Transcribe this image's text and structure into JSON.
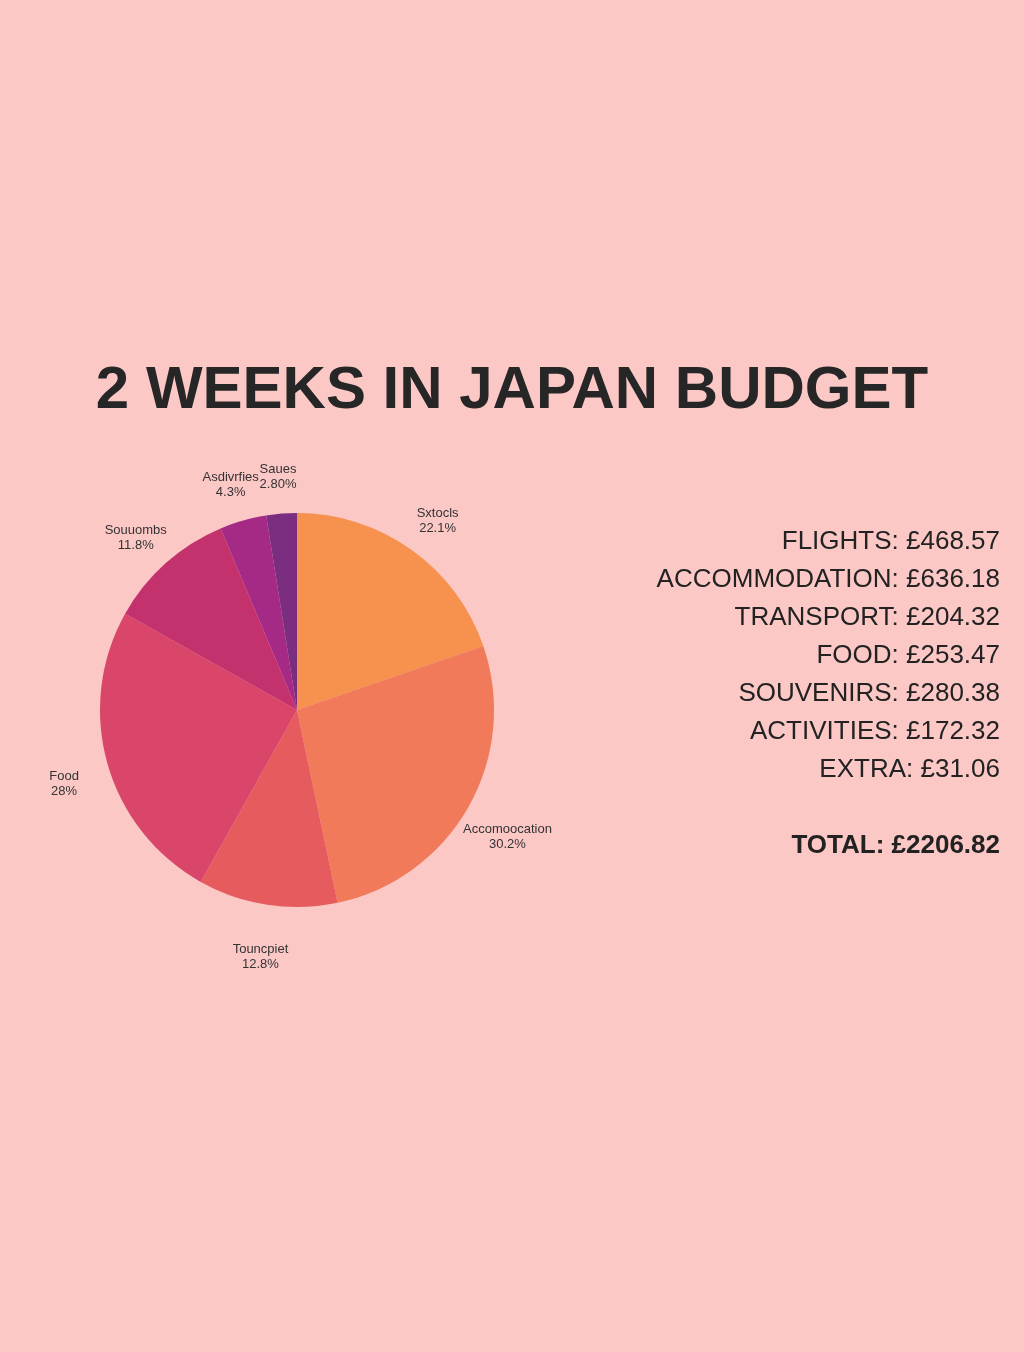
{
  "chart_data": {
    "type": "pie",
    "title": "2 WEEKS IN JAPAN BUDGET",
    "categories": [
      "Sxtocls",
      "Accomoocation",
      "Touncpiet",
      "Food",
      "Souuombs",
      "Asdivrfies",
      "Saues"
    ],
    "values": [
      22.1,
      30.2,
      12.8,
      28,
      11.8,
      4.3,
      2.8
    ],
    "colors": [
      "#f7914e",
      "#f07a5a",
      "#e65b5e",
      "#d9466a",
      "#c4326e",
      "#a52a85",
      "#7b2d80"
    ],
    "value_labels": [
      "22.1%",
      "30.2%",
      "12.8%",
      "28%",
      "11.8%",
      "4.3%",
      "2.80%"
    ],
    "annotations": [
      "FLIGHTS:  £468.57",
      "ACCOMMODATION:  £636.18",
      "TRANSPORT:  £204.32",
      "FOOD:  £253.47",
      "SOUVENIRS:  £280.38",
      "ACTIVITIES:  £172.32",
      "EXTRA:  £31.06",
      "TOTAL: £2206.82"
    ]
  }
}
